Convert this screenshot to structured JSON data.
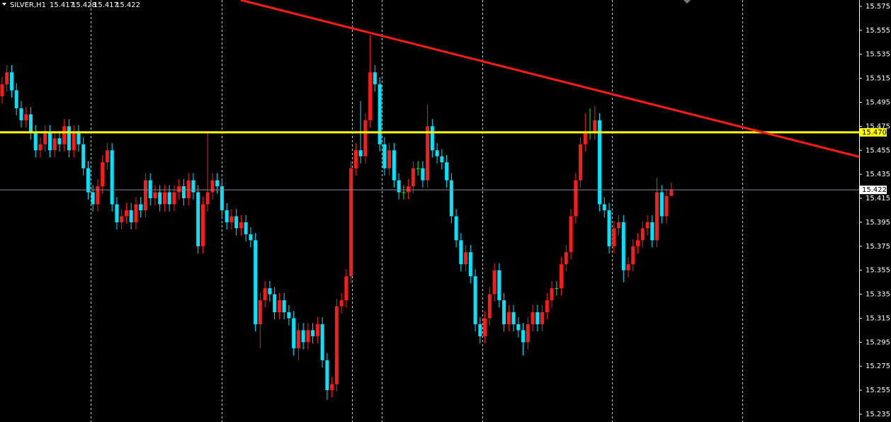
{
  "chart_data": {
    "type": "candlestick",
    "symbol": "SILVER,H1",
    "ylim": [
      15.2285,
      15.5803
    ],
    "yticks": [
      15.575,
      15.555,
      15.535,
      15.515,
      15.495,
      15.475,
      15.455,
      15.435,
      15.415,
      15.395,
      15.375,
      15.355,
      15.335,
      15.315,
      15.295,
      15.275,
      15.255,
      15.235
    ],
    "xlim": [
      -0.44,
      179.3
    ],
    "up_color": "#ff1a1a",
    "down_color": "#00e5ff",
    "doji_color": "#00ff00",
    "hlines": [
      {
        "value": 15.47,
        "label": "15.470",
        "color": "#ffff00"
      }
    ],
    "trendline": {
      "x": [
        49.9,
        179.6
      ],
      "y": [
        15.5803,
        15.4493
      ],
      "color": "#ff1a1a"
    },
    "candles": [
      [
        15.5,
        15.516,
        15.494,
        15.51
      ],
      [
        15.51,
        15.526,
        15.504,
        15.52
      ],
      [
        15.52,
        15.526,
        15.499,
        15.505
      ],
      [
        15.505,
        15.511,
        15.484,
        15.49
      ],
      [
        15.49,
        15.496,
        15.474,
        15.48
      ],
      [
        15.48,
        15.491,
        15.474,
        15.485
      ],
      [
        15.485,
        15.491,
        15.464,
        15.47
      ],
      [
        15.47,
        15.476,
        15.449,
        15.455
      ],
      [
        15.455,
        15.466,
        15.449,
        15.46
      ],
      [
        15.46,
        15.476,
        15.454,
        15.47
      ],
      [
        15.47,
        15.476,
        15.449,
        15.455
      ],
      [
        15.455,
        15.471,
        15.449,
        15.465
      ],
      [
        15.465,
        15.471,
        15.454,
        15.46
      ],
      [
        15.46,
        15.481,
        15.454,
        15.475
      ],
      [
        15.475,
        15.481,
        15.449,
        15.455
      ],
      [
        15.455,
        15.476,
        15.449,
        15.47
      ],
      [
        15.47,
        15.476,
        15.454,
        15.46
      ],
      [
        15.46,
        15.466,
        15.434,
        15.44
      ],
      [
        15.44,
        15.446,
        15.414,
        15.42
      ],
      [
        15.42,
        15.426,
        15.404,
        15.41
      ],
      [
        15.41,
        15.431,
        15.404,
        15.425
      ],
      [
        15.425,
        15.451,
        15.419,
        15.445
      ],
      [
        15.445,
        15.461,
        15.439,
        15.455
      ],
      [
        15.455,
        15.461,
        15.404,
        15.41
      ],
      [
        15.41,
        15.416,
        15.389,
        15.395
      ],
      [
        15.395,
        15.406,
        15.389,
        15.4
      ],
      [
        15.4,
        15.411,
        15.394,
        15.405
      ],
      [
        15.405,
        15.411,
        15.389,
        15.395
      ],
      [
        15.395,
        15.416,
        15.389,
        15.41
      ],
      [
        15.41,
        15.416,
        15.399,
        15.405
      ],
      [
        15.405,
        15.436,
        15.399,
        15.43
      ],
      [
        15.43,
        15.436,
        15.409,
        15.415
      ],
      [
        15.415,
        15.426,
        15.409,
        15.42
      ],
      [
        15.42,
        15.426,
        15.404,
        15.41
      ],
      [
        15.41,
        15.426,
        15.404,
        15.42
      ],
      [
        15.42,
        15.426,
        15.404,
        15.41
      ],
      [
        15.41,
        15.426,
        15.404,
        15.42
      ],
      [
        15.42,
        15.431,
        15.414,
        15.425
      ],
      [
        15.425,
        15.431,
        15.409,
        15.415
      ],
      [
        15.415,
        15.436,
        15.409,
        15.43
      ],
      [
        15.43,
        15.436,
        15.414,
        15.42
      ],
      [
        15.42,
        15.426,
        15.369,
        15.375
      ],
      [
        15.375,
        15.416,
        15.369,
        15.41
      ],
      [
        15.41,
        15.47,
        15.404,
        15.42
      ],
      [
        15.42,
        15.436,
        15.414,
        15.43
      ],
      [
        15.43,
        15.436,
        15.419,
        15.425
      ],
      [
        15.425,
        15.431,
        15.399,
        15.405
      ],
      [
        15.405,
        15.411,
        15.389,
        15.395
      ],
      [
        15.395,
        15.406,
        15.389,
        15.4
      ],
      [
        15.4,
        15.406,
        15.384,
        15.39
      ],
      [
        15.39,
        15.401,
        15.384,
        15.395
      ],
      [
        15.395,
        15.401,
        15.379,
        15.385
      ],
      [
        15.385,
        15.391,
        15.374,
        15.38
      ],
      [
        15.38,
        15.386,
        15.304,
        15.31
      ],
      [
        15.31,
        15.336,
        15.29,
        15.33
      ],
      [
        15.33,
        15.346,
        15.324,
        15.34
      ],
      [
        15.34,
        15.346,
        15.329,
        15.335
      ],
      [
        15.335,
        15.341,
        15.314,
        15.32
      ],
      [
        15.32,
        15.336,
        15.314,
        15.33
      ],
      [
        15.33,
        15.336,
        15.314,
        15.32
      ],
      [
        15.32,
        15.326,
        15.309,
        15.315
      ],
      [
        15.315,
        15.321,
        15.284,
        15.29
      ],
      [
        15.29,
        15.311,
        15.28,
        15.305
      ],
      [
        15.305,
        15.311,
        15.289,
        15.295
      ],
      [
        15.295,
        15.311,
        15.289,
        15.305
      ],
      [
        15.305,
        15.311,
        15.294,
        15.3
      ],
      [
        15.3,
        15.316,
        15.294,
        15.31
      ],
      [
        15.31,
        15.316,
        15.274,
        15.28
      ],
      [
        15.28,
        15.286,
        15.247,
        15.255
      ],
      [
        15.255,
        15.266,
        15.249,
        15.26
      ],
      [
        15.26,
        15.331,
        15.254,
        15.325
      ],
      [
        15.325,
        15.336,
        15.319,
        15.33
      ],
      [
        15.33,
        15.356,
        15.324,
        15.35
      ],
      [
        15.35,
        15.446,
        15.344,
        15.44
      ],
      [
        15.44,
        15.461,
        15.434,
        15.455
      ],
      [
        15.455,
        15.496,
        15.444,
        15.45
      ],
      [
        15.45,
        15.486,
        15.444,
        15.48
      ],
      [
        15.48,
        15.551,
        15.474,
        15.52
      ],
      [
        15.52,
        15.526,
        15.504,
        15.51
      ],
      [
        15.51,
        15.516,
        15.454,
        15.46
      ],
      [
        15.46,
        15.466,
        15.434,
        15.44
      ],
      [
        15.44,
        15.461,
        15.434,
        15.455
      ],
      [
        15.455,
        15.461,
        15.424,
        15.43
      ],
      [
        15.43,
        15.436,
        15.414,
        15.42
      ],
      [
        15.42,
        15.426,
        15.414,
        15.42
      ],
      [
        15.42,
        15.431,
        15.414,
        15.425
      ],
      [
        15.425,
        15.446,
        15.419,
        15.44
      ],
      [
        15.44,
        15.446,
        15.434,
        15.44
      ],
      [
        15.44,
        15.446,
        15.424,
        15.43
      ],
      [
        15.43,
        15.493,
        15.424,
        15.475
      ],
      [
        15.475,
        15.481,
        15.449,
        15.455
      ],
      [
        15.455,
        15.461,
        15.444,
        15.45
      ],
      [
        15.45,
        15.456,
        15.439,
        15.445
      ],
      [
        15.445,
        15.451,
        15.424,
        15.43
      ],
      [
        15.43,
        15.436,
        15.394,
        15.4
      ],
      [
        15.4,
        15.406,
        15.374,
        15.38
      ],
      [
        15.38,
        15.386,
        15.354,
        15.36
      ],
      [
        15.36,
        15.376,
        15.354,
        15.37
      ],
      [
        15.37,
        15.376,
        15.344,
        15.35
      ],
      [
        15.35,
        15.356,
        15.304,
        15.31
      ],
      [
        15.31,
        15.316,
        15.294,
        15.3
      ],
      [
        15.3,
        15.321,
        15.294,
        15.315
      ],
      [
        15.315,
        15.341,
        15.309,
        15.335
      ],
      [
        15.335,
        15.361,
        15.329,
        15.355
      ],
      [
        15.355,
        15.361,
        15.324,
        15.33
      ],
      [
        15.33,
        15.336,
        15.304,
        15.31
      ],
      [
        15.31,
        15.326,
        15.304,
        15.32
      ],
      [
        15.32,
        15.326,
        15.304,
        15.31
      ],
      [
        15.31,
        15.316,
        15.299,
        15.305
      ],
      [
        15.305,
        15.311,
        15.284,
        15.295
      ],
      [
        15.295,
        15.316,
        15.289,
        15.31
      ],
      [
        15.31,
        15.326,
        15.304,
        15.32
      ],
      [
        15.32,
        15.326,
        15.304,
        15.31
      ],
      [
        15.31,
        15.326,
        15.304,
        15.32
      ],
      [
        15.32,
        15.336,
        15.314,
        15.33
      ],
      [
        15.33,
        15.346,
        15.324,
        15.34
      ],
      [
        15.34,
        15.346,
        15.334,
        15.34
      ],
      [
        15.34,
        15.366,
        15.334,
        15.36
      ],
      [
        15.36,
        15.376,
        15.354,
        15.37
      ],
      [
        15.37,
        15.406,
        15.364,
        15.4
      ],
      [
        15.4,
        15.436,
        15.394,
        15.43
      ],
      [
        15.43,
        15.466,
        15.424,
        15.46
      ],
      [
        15.46,
        15.486,
        15.454,
        15.47
      ],
      [
        15.47,
        15.49,
        15.464,
        15.47
      ],
      [
        15.47,
        15.492,
        15.464,
        15.48
      ],
      [
        15.48,
        15.486,
        15.404,
        15.41
      ],
      [
        15.41,
        15.416,
        15.399,
        15.405
      ],
      [
        15.405,
        15.411,
        15.369,
        15.375
      ],
      [
        15.375,
        15.396,
        15.369,
        15.39
      ],
      [
        15.39,
        15.401,
        15.384,
        15.395
      ],
      [
        15.395,
        15.401,
        15.345,
        15.355
      ],
      [
        15.355,
        15.366,
        15.349,
        15.36
      ],
      [
        15.36,
        15.381,
        15.354,
        15.375
      ],
      [
        15.375,
        15.386,
        15.369,
        15.38
      ],
      [
        15.38,
        15.396,
        15.374,
        15.39
      ],
      [
        15.39,
        15.401,
        15.384,
        15.395
      ],
      [
        15.395,
        15.401,
        15.374,
        15.38
      ],
      [
        15.38,
        15.432,
        15.374,
        15.42
      ],
      [
        15.42,
        15.426,
        15.394,
        15.4
      ],
      [
        15.4,
        15.423,
        15.394,
        15.417
      ],
      [
        15.417,
        15.428,
        15.417,
        15.422
      ]
    ]
  }
}
